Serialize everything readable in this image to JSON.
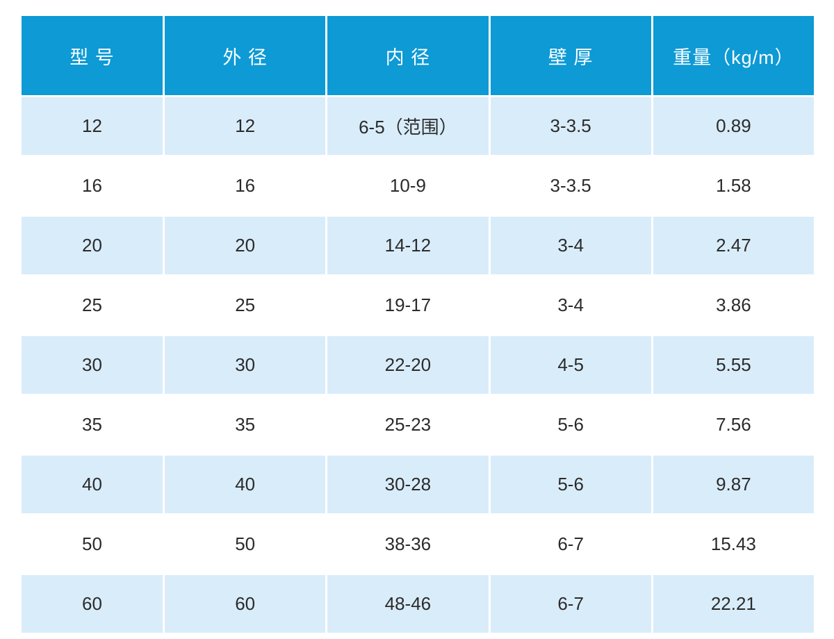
{
  "table": {
    "headers": [
      "型 号",
      "外 径",
      "内 径",
      "壁 厚",
      "重量（kg/m）"
    ],
    "rows": [
      [
        "12",
        "12",
        "6-5（范围）",
        "3-3.5",
        "0.89"
      ],
      [
        "16",
        "16",
        "10-9",
        "3-3.5",
        "1.58"
      ],
      [
        "20",
        "20",
        "14-12",
        "3-4",
        "2.47"
      ],
      [
        "25",
        "25",
        "19-17",
        "3-4",
        "3.86"
      ],
      [
        "30",
        "30",
        "22-20",
        "4-5",
        "5.55"
      ],
      [
        "35",
        "35",
        "25-23",
        "5-6",
        "7.56"
      ],
      [
        "40",
        "40",
        "30-28",
        "5-6",
        "9.87"
      ],
      [
        "50",
        "50",
        "38-36",
        "6-7",
        "15.43"
      ],
      [
        "60",
        "60",
        "48-46",
        "6-7",
        "22.21"
      ]
    ],
    "columns_meaning": [
      "model",
      "outer-diameter",
      "inner-diameter",
      "wall-thickness",
      "weight-kg-per-m"
    ],
    "colors": {
      "header_bg": "#0d9ad5",
      "alt_row_bg": "#d9ecfa",
      "plain_row_bg": "#ffffff",
      "header_text": "#ffffff",
      "body_text": "#2b2b2b"
    }
  }
}
